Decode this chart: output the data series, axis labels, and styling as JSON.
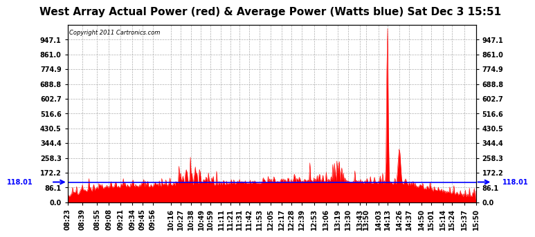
{
  "title": "West Array Actual Power (red) & Average Power (Watts blue) Sat Dec 3 15:51",
  "copyright": "Copyright 2011 Cartronics.com",
  "avg_power": 118.01,
  "ymax": 1033.1,
  "ymin": 0.0,
  "ytick_interval": 86.1,
  "bg_color": "#ffffff",
  "plot_bg_color": "#ffffff",
  "grid_color": "#999999",
  "red_color": "#ff0000",
  "blue_color": "#0000ff",
  "x_labels": [
    "08:23",
    "08:39",
    "08:55",
    "09:08",
    "09:21",
    "09:34",
    "09:45",
    "09:56",
    "10:16",
    "10:27",
    "10:38",
    "10:49",
    "10:59",
    "11:11",
    "11:21",
    "11:31",
    "11:42",
    "11:53",
    "12:05",
    "12:17",
    "12:28",
    "12:39",
    "12:53",
    "13:06",
    "13:19",
    "13:30",
    "13:43",
    "13:50",
    "14:03",
    "14:13",
    "14:26",
    "14:37",
    "14:50",
    "15:01",
    "15:14",
    "15:24",
    "15:37",
    "15:50"
  ],
  "title_fontsize": 11,
  "tick_fontsize": 7
}
